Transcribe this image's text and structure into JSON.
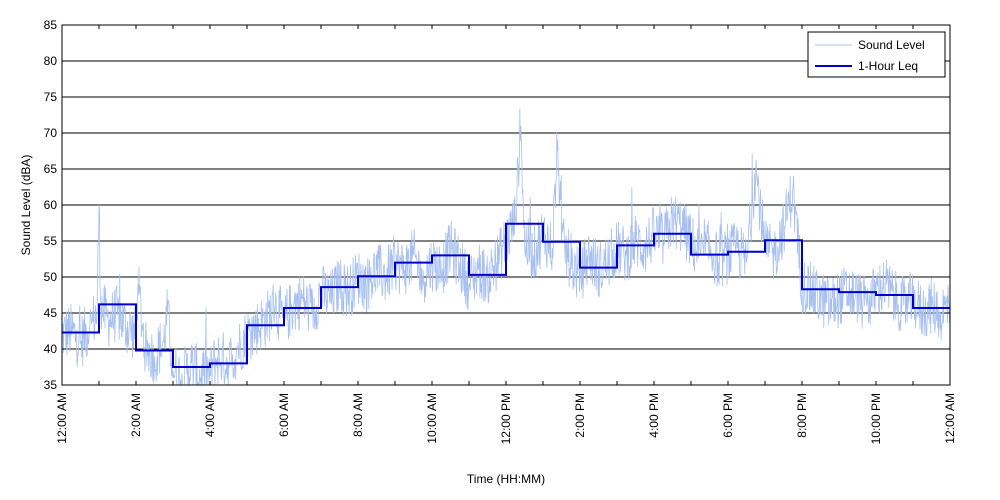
{
  "chart_data": {
    "type": "line",
    "title": "",
    "xlabel": "Time (HH:MM)",
    "ylabel": "Sound Level (dBA)",
    "ylim": [
      35,
      85
    ],
    "xlim": [
      0,
      24
    ],
    "grid": "horizontal",
    "legend_position": "top-right",
    "y_ticks": [
      "35",
      "40",
      "45",
      "50",
      "55",
      "60",
      "65",
      "70",
      "75",
      "80",
      "85"
    ],
    "x_ticks": [
      {
        "value": 0,
        "label": "12:00 AM"
      },
      {
        "value": 2,
        "label": "2:00 AM"
      },
      {
        "value": 4,
        "label": "4:00 AM"
      },
      {
        "value": 6,
        "label": "6:00 AM"
      },
      {
        "value": 8,
        "label": "8:00 AM"
      },
      {
        "value": 10,
        "label": "10:00 AM"
      },
      {
        "value": 12,
        "label": "12:00 PM"
      },
      {
        "value": 14,
        "label": "2:00 PM"
      },
      {
        "value": 16,
        "label": "4:00 PM"
      },
      {
        "value": 18,
        "label": "6:00 PM"
      },
      {
        "value": 20,
        "label": "8:00 PM"
      },
      {
        "value": 22,
        "label": "10:00 PM"
      },
      {
        "value": 24,
        "label": "12:00 AM"
      }
    ],
    "series": [
      {
        "name": "Sound Level",
        "color": "#a8c0f0",
        "style": "thin noisy line",
        "x": [
          0,
          0.25,
          0.5,
          0.75,
          0.95,
          1.0,
          1.05,
          1.25,
          1.5,
          1.75,
          2.0,
          2.05,
          2.25,
          2.5,
          2.75,
          2.85,
          3.0,
          3.25,
          3.5,
          3.75,
          4.0,
          4.25,
          4.5,
          4.75,
          5.0,
          5.25,
          5.5,
          5.75,
          6.0,
          6.25,
          6.5,
          6.75,
          7.0,
          7.25,
          7.5,
          7.75,
          8.0,
          8.25,
          8.5,
          8.75,
          9.0,
          9.25,
          9.5,
          9.75,
          10.0,
          10.25,
          10.5,
          10.75,
          11.0,
          11.25,
          11.5,
          11.75,
          12.0,
          12.25,
          12.4,
          12.5,
          12.75,
          13.0,
          13.25,
          13.4,
          13.5,
          13.75,
          14.0,
          14.25,
          14.5,
          14.75,
          15.0,
          15.25,
          15.5,
          15.75,
          16.0,
          16.25,
          16.5,
          16.75,
          17.0,
          17.25,
          17.5,
          17.75,
          18.0,
          18.25,
          18.5,
          18.75,
          19.0,
          19.25,
          19.5,
          19.75,
          20.0,
          20.25,
          20.5,
          20.75,
          21.0,
          21.25,
          21.5,
          21.75,
          22.0,
          22.25,
          22.5,
          22.75,
          23.0,
          23.25,
          23.5,
          23.75,
          24.0
        ],
        "values": [
          42,
          42.5,
          41,
          43,
          45,
          60,
          46,
          44,
          45,
          43,
          42,
          49,
          40,
          39,
          41,
          45,
          37,
          36,
          38,
          36,
          37,
          39,
          38,
          40,
          42,
          43,
          44,
          46,
          44,
          46,
          47,
          45,
          48,
          47,
          49,
          48,
          50,
          49,
          51,
          50,
          52,
          51,
          53,
          50,
          52,
          51,
          54,
          52,
          49,
          51,
          50,
          52,
          55,
          58,
          71,
          55,
          53,
          56,
          54,
          69,
          55,
          52,
          50,
          53,
          51,
          52,
          54,
          53,
          55,
          54,
          56,
          55,
          58,
          57,
          55,
          53,
          54,
          52,
          53,
          54,
          52,
          65,
          54,
          53,
          57,
          62,
          49,
          48,
          47,
          46,
          47,
          48,
          47,
          46,
          48,
          49,
          47,
          46,
          47,
          45,
          46,
          45,
          46
        ]
      },
      {
        "name": "1-Hour Leq",
        "color": "#0000cc",
        "style": "step",
        "x": [
          0,
          1,
          2,
          3,
          4,
          5,
          6,
          7,
          8,
          9,
          10,
          11,
          12,
          13,
          14,
          15,
          16,
          17,
          18,
          19,
          20,
          21,
          22,
          23
        ],
        "values": [
          42.3,
          46.2,
          39.8,
          37.5,
          38.0,
          43.3,
          45.7,
          48.6,
          50.1,
          52.0,
          53.0,
          50.3,
          57.4,
          54.9,
          51.3,
          54.4,
          56.0,
          53.1,
          53.5,
          55.1,
          48.3,
          47.9,
          47.5,
          45.7
        ]
      }
    ]
  }
}
